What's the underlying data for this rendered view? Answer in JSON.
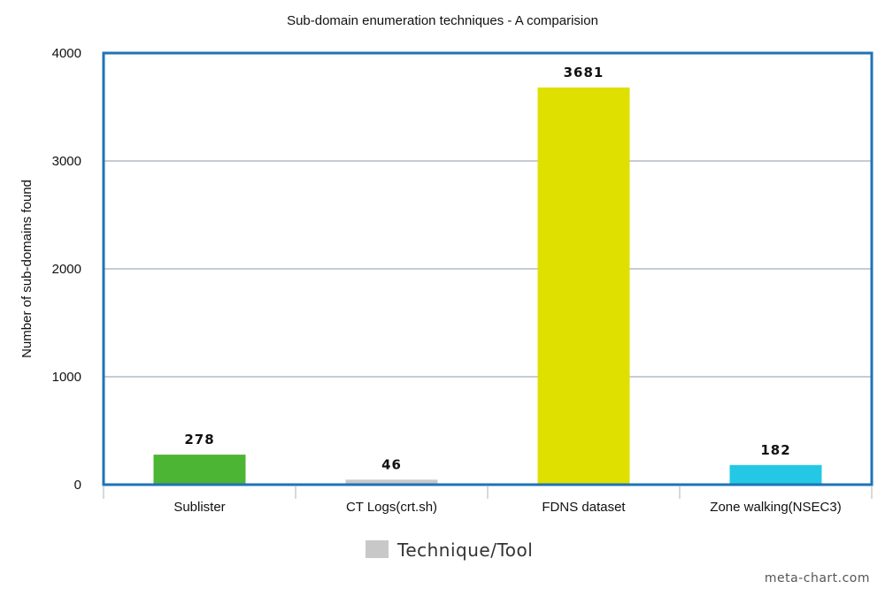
{
  "chart_data": {
    "type": "bar",
    "title": "Sub-domain enumeration techniques - A comparision",
    "xlabel": "",
    "ylabel": "Number of sub-domains found",
    "ylim": [
      0,
      4000
    ],
    "yticks": [
      0,
      1000,
      2000,
      3000,
      4000
    ],
    "grid": true,
    "categories": [
      "Sublister",
      "CT Logs(crt.sh)",
      "FDNS dataset",
      "Zone walking(NSEC3)"
    ],
    "values": [
      278,
      46,
      3681,
      182
    ],
    "bar_colors": [
      "#4db534",
      "#c8c8c8",
      "#dfe000",
      "#24c8e4"
    ],
    "legend": {
      "position": "bottom",
      "entries": [
        {
          "label": "Technique/Tool",
          "color": "#c8c8c8"
        }
      ]
    },
    "colors": {
      "frame": "#1f73b7",
      "grid": "#b4bcc4",
      "axis": "#777777"
    }
  },
  "watermark": "meta-chart.com"
}
